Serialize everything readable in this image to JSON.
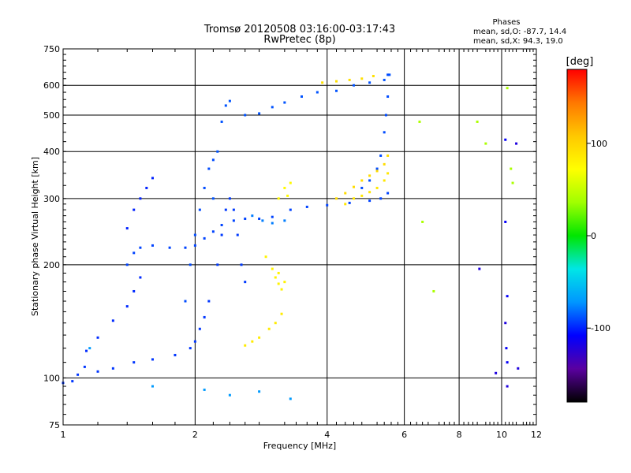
{
  "header": {
    "title_line1": "Tromsø 20120508 03:16:00-03:17:43",
    "title_line2": "RwPretec (8p)"
  },
  "phases_box": {
    "title": "Phases",
    "line1": "mean, sd,O: -87.7, 14.4",
    "line2": "mean, sd,X:  94.3, 19.0"
  },
  "colorbar": {
    "unit_label": "[deg]",
    "tick_labels": [
      "100",
      "0",
      "-100"
    ],
    "tick_values": [
      100,
      0,
      -100
    ],
    "range": [
      -180,
      180
    ],
    "colors": [
      "#000000",
      "#5a00a0",
      "#0000ff",
      "#0096ff",
      "#00e6e6",
      "#00e600",
      "#a0ff00",
      "#ffff00",
      "#ffc800",
      "#ff7800",
      "#ff0000"
    ]
  },
  "chart_data": {
    "type": "scatter",
    "xlabel": "Frequency [MHz]",
    "ylabel": "Stationary phase Virtual Height [km]",
    "x_scale": "log",
    "y_scale": "log",
    "xlim": [
      1,
      12
    ],
    "ylim": [
      75,
      750
    ],
    "x_ticks": [
      1,
      2,
      4,
      6,
      8,
      10,
      12
    ],
    "x_tick_labels": [
      "1",
      "2",
      "4",
      "6",
      "8",
      "10",
      "12"
    ],
    "y_ticks": [
      75,
      100,
      200,
      300,
      400,
      500,
      600,
      750
    ],
    "y_tick_labels": [
      "75",
      "100",
      "200",
      "300",
      "400",
      "500",
      "600",
      "750"
    ],
    "grid": true,
    "color_encodes": "phase [deg]",
    "traces": [
      {
        "phase": -95,
        "points": [
          [
            1.0,
            97
          ],
          [
            1.05,
            98
          ],
          [
            1.08,
            102
          ],
          [
            1.12,
            107
          ],
          [
            1.2,
            104
          ],
          [
            1.3,
            106
          ],
          [
            1.45,
            110
          ],
          [
            1.6,
            112
          ],
          [
            1.8,
            115
          ],
          [
            1.95,
            120
          ],
          [
            2.0,
            125
          ],
          [
            2.05,
            135
          ],
          [
            2.1,
            145
          ],
          [
            2.15,
            160
          ]
        ]
      },
      {
        "phase": -98,
        "points": [
          [
            1.13,
            118
          ],
          [
            1.2,
            128
          ],
          [
            1.3,
            142
          ],
          [
            1.4,
            155
          ],
          [
            1.45,
            170
          ],
          [
            1.5,
            185
          ]
        ]
      },
      {
        "phase": -92,
        "points": [
          [
            1.4,
            200
          ],
          [
            1.45,
            215
          ],
          [
            1.5,
            222
          ],
          [
            1.6,
            225
          ],
          [
            1.75,
            222
          ],
          [
            1.9,
            222
          ],
          [
            2.0,
            225
          ],
          [
            2.1,
            235
          ],
          [
            2.2,
            245
          ],
          [
            2.3,
            255
          ],
          [
            2.45,
            262
          ],
          [
            2.6,
            265
          ],
          [
            2.8,
            265
          ],
          [
            3.0,
            268
          ],
          [
            3.3,
            280
          ],
          [
            3.6,
            285
          ],
          [
            4.0,
            288
          ],
          [
            4.5,
            292
          ],
          [
            5.0,
            296
          ],
          [
            5.3,
            300
          ],
          [
            5.5,
            310
          ]
        ]
      },
      {
        "phase": -100,
        "points": [
          [
            1.4,
            250
          ],
          [
            1.45,
            280
          ],
          [
            1.5,
            300
          ],
          [
            1.55,
            320
          ],
          [
            1.6,
            340
          ]
        ]
      },
      {
        "phase": -90,
        "points": [
          [
            1.9,
            160
          ],
          [
            1.95,
            200
          ],
          [
            2.0,
            240
          ],
          [
            2.05,
            280
          ],
          [
            2.1,
            320
          ],
          [
            2.15,
            360
          ],
          [
            2.2,
            380
          ]
        ]
      },
      {
        "phase": -94,
        "points": [
          [
            2.25,
            200
          ],
          [
            2.3,
            240
          ],
          [
            2.35,
            280
          ],
          [
            2.4,
            300
          ],
          [
            2.45,
            280
          ],
          [
            2.5,
            240
          ],
          [
            2.55,
            200
          ],
          [
            2.6,
            180
          ]
        ]
      },
      {
        "phase": -88,
        "points": [
          [
            2.2,
            300
          ],
          [
            2.25,
            400
          ],
          [
            2.3,
            480
          ],
          [
            2.35,
            530
          ],
          [
            2.4,
            545
          ],
          [
            2.6,
            500
          ],
          [
            2.8,
            505
          ],
          [
            3.0,
            525
          ],
          [
            3.2,
            540
          ],
          [
            3.5,
            560
          ],
          [
            3.8,
            575
          ],
          [
            4.2,
            580
          ],
          [
            4.6,
            600
          ],
          [
            5.0,
            610
          ],
          [
            5.4,
            620
          ],
          [
            5.55,
            640
          ]
        ]
      },
      {
        "phase": -90,
        "points": [
          [
            5.5,
            640
          ],
          [
            5.5,
            560
          ],
          [
            5.45,
            500
          ],
          [
            5.4,
            450
          ],
          [
            5.3,
            390
          ],
          [
            5.2,
            360
          ],
          [
            5.0,
            335
          ],
          [
            4.8,
            320
          ]
        ]
      },
      {
        "phase": -78,
        "points": [
          [
            2.7,
            270
          ],
          [
            2.85,
            262
          ],
          [
            3.0,
            258
          ],
          [
            3.2,
            262
          ]
        ]
      },
      {
        "phase": 95,
        "points": [
          [
            4.2,
            300
          ],
          [
            4.4,
            310
          ],
          [
            4.6,
            322
          ],
          [
            4.8,
            335
          ],
          [
            5.0,
            345
          ],
          [
            5.2,
            355
          ],
          [
            5.4,
            370
          ],
          [
            5.5,
            390
          ]
        ]
      },
      {
        "phase": 88,
        "points": [
          [
            4.4,
            290
          ],
          [
            4.6,
            300
          ],
          [
            4.8,
            305
          ],
          [
            5.0,
            312
          ],
          [
            5.2,
            320
          ],
          [
            5.4,
            335
          ],
          [
            5.5,
            350
          ]
        ]
      },
      {
        "phase": 92,
        "points": [
          [
            3.9,
            610
          ],
          [
            4.2,
            615
          ],
          [
            4.5,
            620
          ],
          [
            4.8,
            625
          ],
          [
            5.1,
            635
          ]
        ]
      },
      {
        "phase": 75,
        "points": [
          [
            3.1,
            300
          ],
          [
            3.2,
            320
          ],
          [
            3.3,
            330
          ],
          [
            3.25,
            305
          ]
        ]
      },
      {
        "phase": 80,
        "points": [
          [
            2.9,
            210
          ],
          [
            3.0,
            195
          ],
          [
            3.05,
            185
          ],
          [
            3.1,
            178
          ],
          [
            3.15,
            172
          ],
          [
            3.2,
            180
          ],
          [
            3.1,
            190
          ]
        ]
      },
      {
        "phase": 85,
        "points": [
          [
            2.6,
            122
          ],
          [
            2.7,
            125
          ],
          [
            2.8,
            128
          ],
          [
            2.95,
            135
          ],
          [
            3.05,
            140
          ],
          [
            3.15,
            148
          ]
        ]
      },
      {
        "phase": -70,
        "points": [
          [
            1.15,
            120
          ],
          [
            1.6,
            95
          ],
          [
            2.1,
            93
          ],
          [
            2.4,
            90
          ],
          [
            2.8,
            92
          ],
          [
            3.3,
            88
          ]
        ]
      },
      {
        "phase": -110,
        "points": [
          [
            10.2,
            430
          ],
          [
            10.2,
            260
          ],
          [
            10.3,
            165
          ],
          [
            10.25,
            120
          ],
          [
            10.3,
            110
          ]
        ]
      },
      {
        "phase": 40,
        "points": [
          [
            6.5,
            480
          ],
          [
            6.6,
            260
          ],
          [
            7.0,
            170
          ],
          [
            8.8,
            480
          ],
          [
            9.2,
            420
          ],
          [
            10.3,
            590
          ],
          [
            10.5,
            360
          ],
          [
            10.6,
            330
          ]
        ]
      },
      {
        "phase": -120,
        "points": [
          [
            8.9,
            195
          ],
          [
            10.2,
            140
          ],
          [
            9.7,
            103
          ],
          [
            10.9,
            106
          ],
          [
            10.3,
            95
          ],
          [
            10.8,
            420
          ]
        ]
      }
    ]
  }
}
